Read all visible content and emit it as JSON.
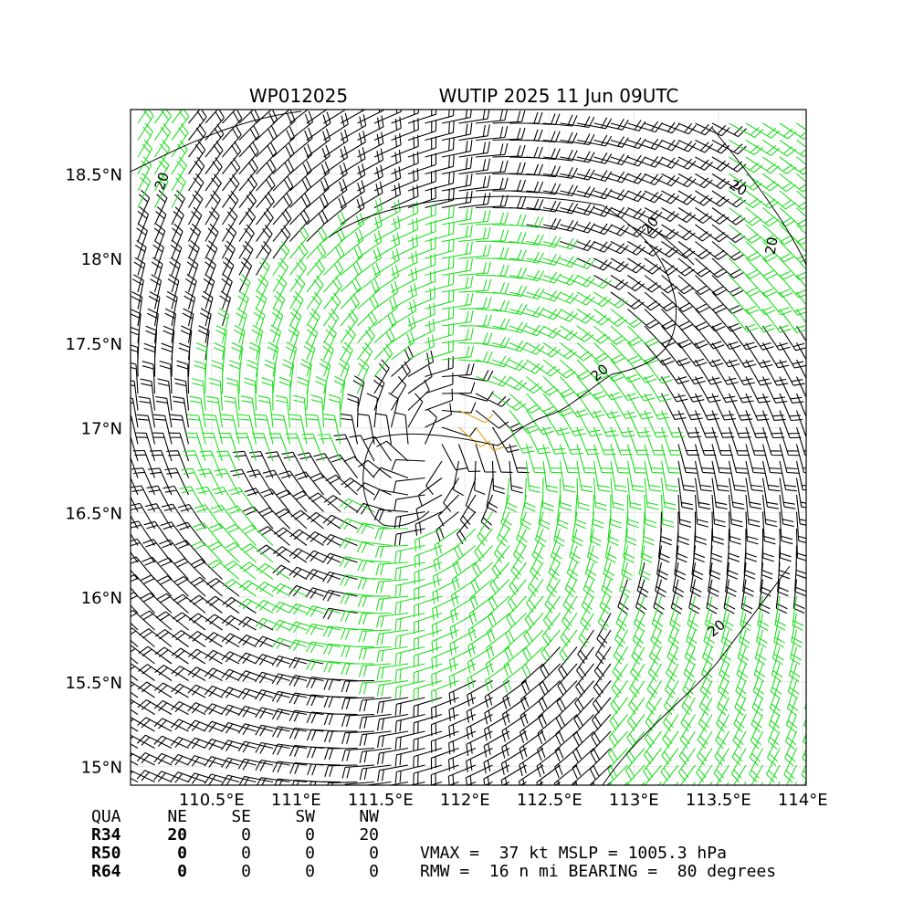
{
  "chart_data": {
    "type": "barbs",
    "storm_id": "WP012025",
    "title": "WUTIP 2025 11 Jun 09UTC",
    "xlim": [
      110.02,
      114.02
    ],
    "ylim": [
      14.89,
      18.88
    ],
    "xticks": [
      {
        "value": 110.5,
        "label": "110.5°E"
      },
      {
        "value": 111,
        "label": "111°E"
      },
      {
        "value": 111.5,
        "label": "111.5°E"
      },
      {
        "value": 112,
        "label": "112°E"
      },
      {
        "value": 112.5,
        "label": "112.5°E"
      },
      {
        "value": 113,
        "label": "113°E"
      },
      {
        "value": 113.5,
        "label": "113.5°E"
      },
      {
        "value": 114,
        "label": "114°E"
      }
    ],
    "yticks": [
      {
        "value": 15,
        "label": "15°N"
      },
      {
        "value": 15.5,
        "label": "15.5°N"
      },
      {
        "value": 16,
        "label": "16°N"
      },
      {
        "value": 16.5,
        "label": "16.5°N"
      },
      {
        "value": 17,
        "label": "17°N"
      },
      {
        "value": 17.5,
        "label": "17.5°N"
      },
      {
        "value": 18,
        "label": "18°N"
      },
      {
        "value": 18.5,
        "label": "18.5°N"
      }
    ],
    "contour_levels": [
      20
    ],
    "grid": true
  },
  "radii_table": {
    "header": [
      "QUA",
      "NE",
      "SE",
      "SW",
      "NW"
    ],
    "rows": [
      [
        "R34",
        20,
        0,
        0,
        20
      ],
      [
        "R50",
        0,
        0,
        0,
        0
      ],
      [
        "R64",
        0,
        0,
        0,
        0
      ]
    ]
  },
  "summary": [
    "VMAX =  37 kt MSLP = 1005.3 hPa",
    "RMW =  16 n mi BEARING =  80 degrees"
  ]
}
